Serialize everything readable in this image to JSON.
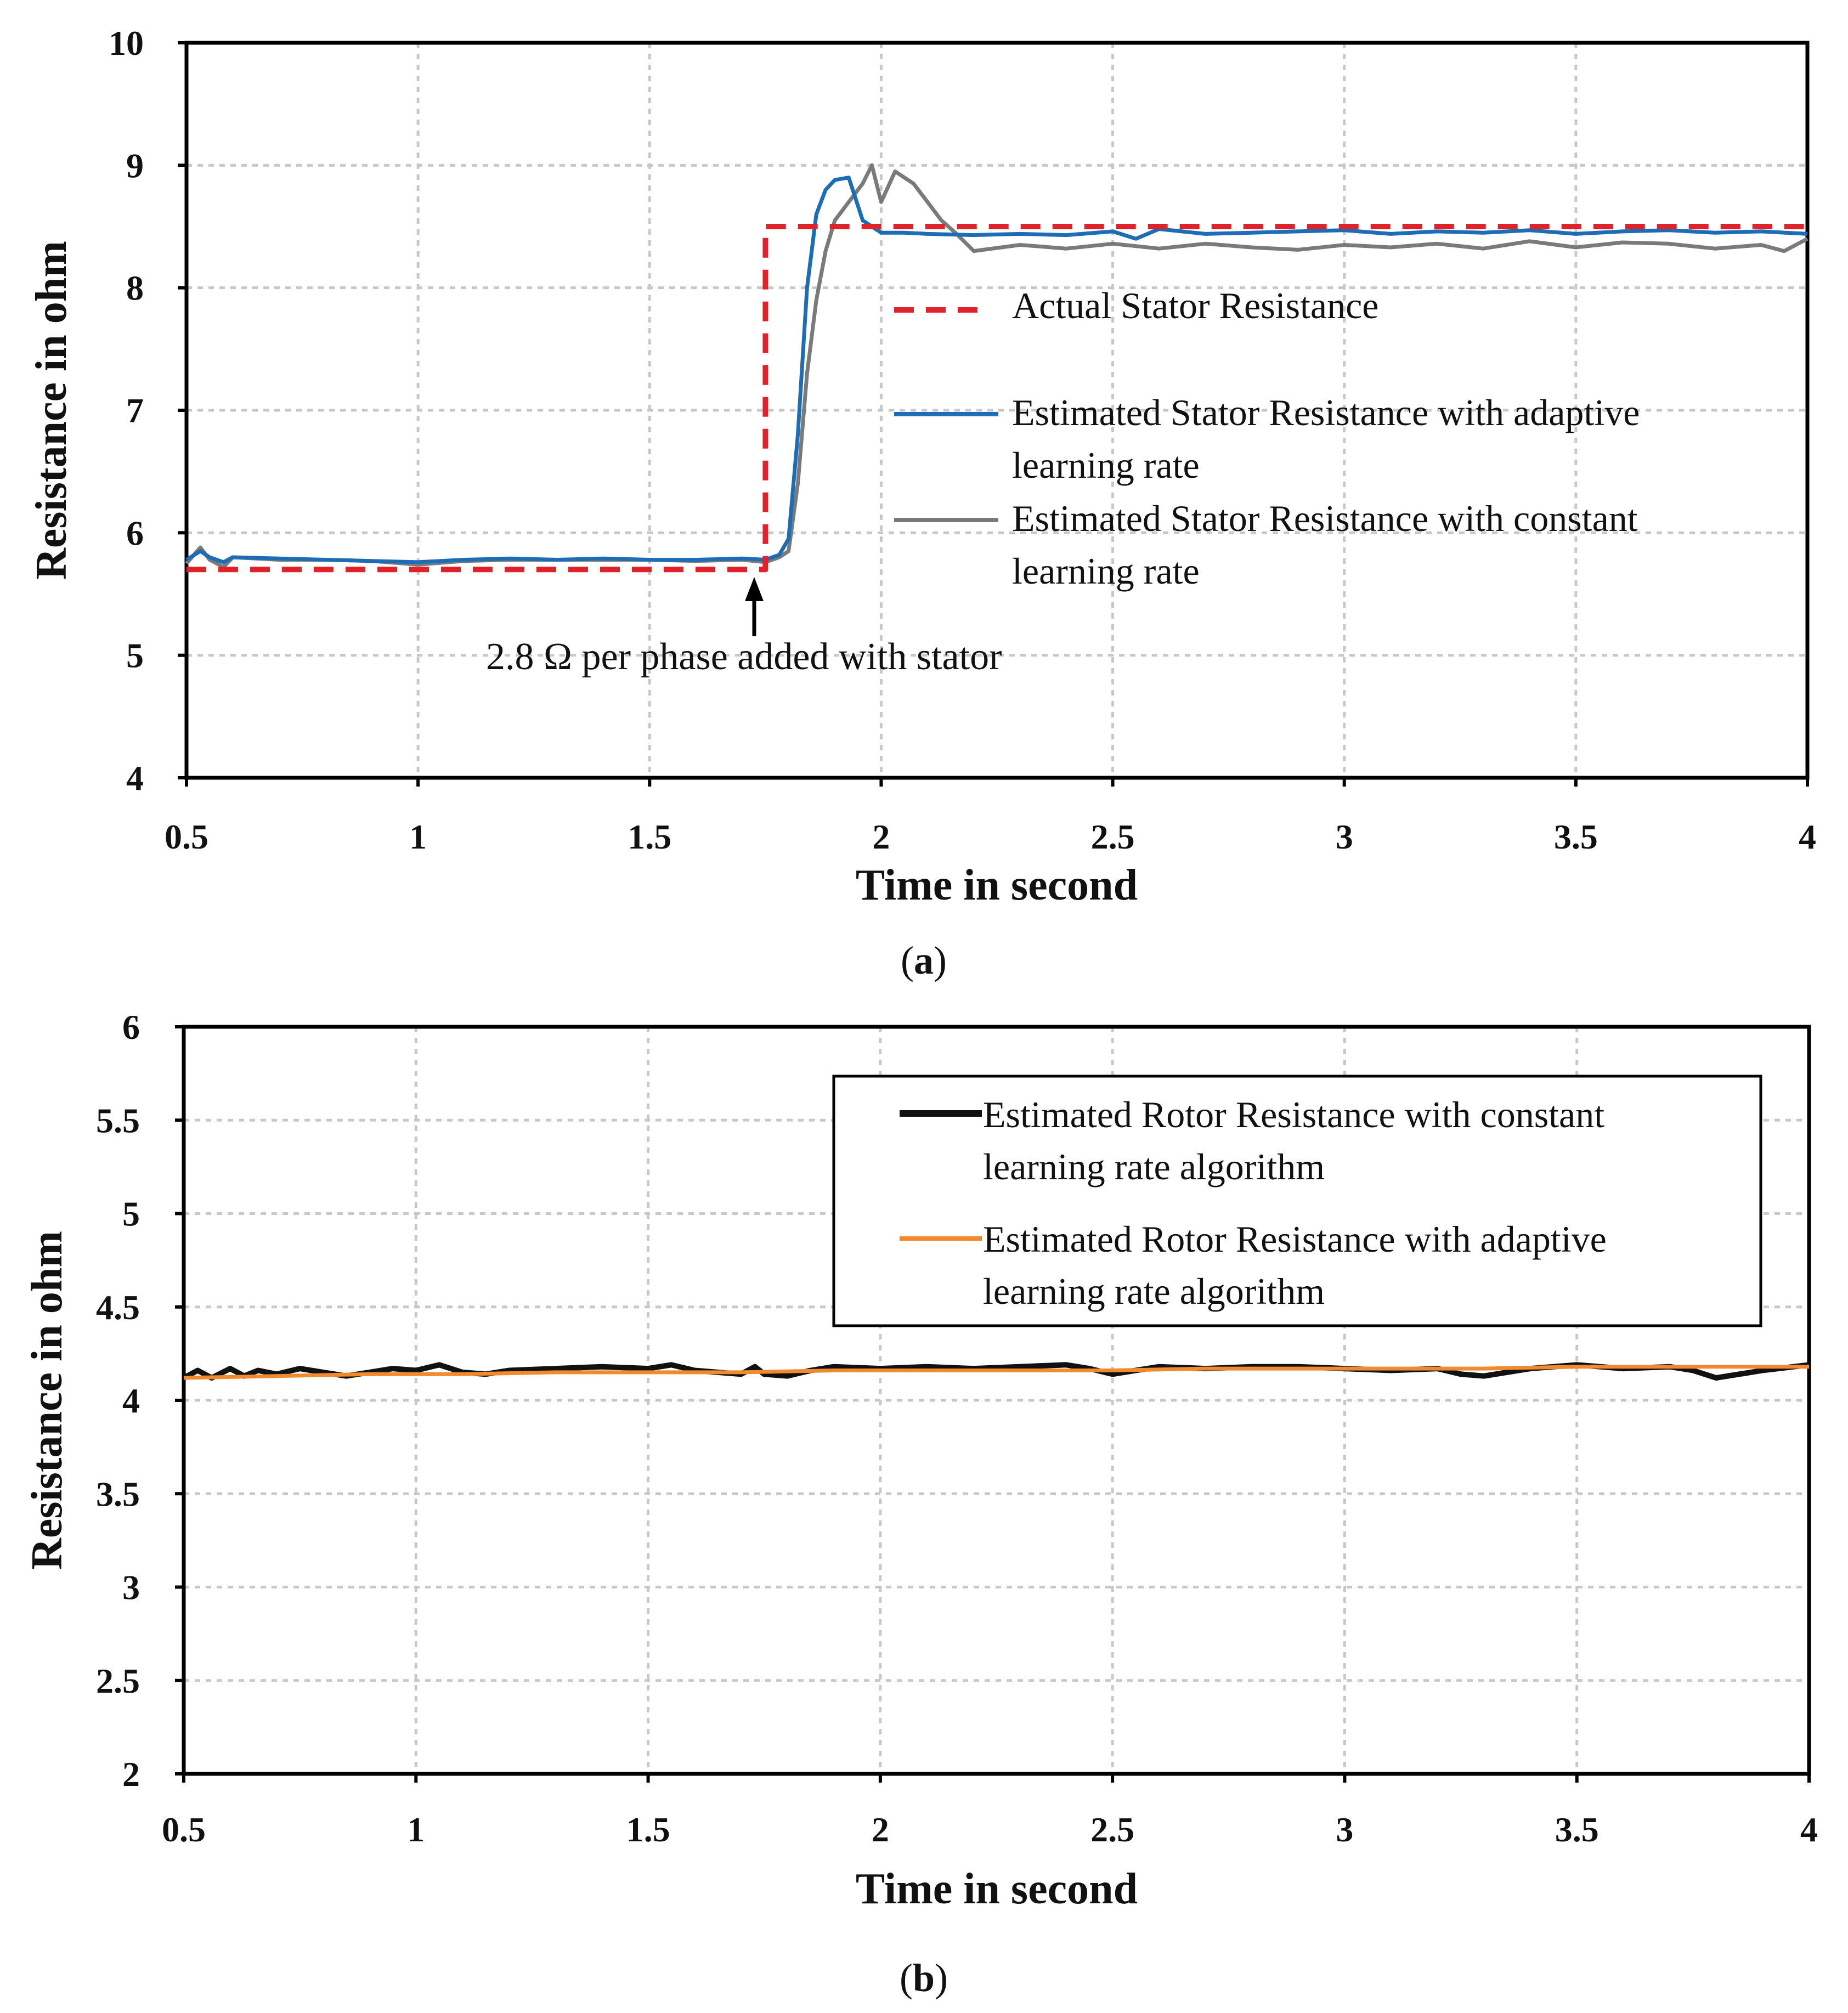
{
  "chart_data": [
    {
      "type": "line",
      "panel_label": "a",
      "xlabel": "Time in second",
      "ylabel": "Resistance in ohm",
      "xlim": [
        0.5,
        4
      ],
      "ylim": [
        4,
        10
      ],
      "xticks": [
        "0.5",
        "1",
        "1.5",
        "2",
        "2.5",
        "3",
        "3.5",
        "4"
      ],
      "yticks": [
        "4",
        "5",
        "6",
        "7",
        "8",
        "9",
        "10"
      ],
      "grid": true,
      "legend_position": "center-right",
      "annotation": {
        "text": "2.8 Ω per phase added with stator",
        "x": 1.75,
        "y": 5.7
      },
      "series": [
        {
          "name": "Actual Stator Resistance",
          "color": "#e0232b",
          "style": "dashed",
          "x": [
            0.5,
            1.75,
            1.75,
            4.0
          ],
          "y": [
            5.7,
            5.7,
            8.5,
            8.5
          ]
        },
        {
          "name": "Estimated Stator Resistance with adaptive learning rate",
          "color": "#1c6db5",
          "style": "solid",
          "x": [
            0.5,
            0.53,
            0.55,
            0.58,
            0.6,
            0.7,
            0.8,
            0.9,
            1.0,
            1.1,
            1.2,
            1.3,
            1.4,
            1.5,
            1.6,
            1.7,
            1.75,
            1.78,
            1.8,
            1.82,
            1.84,
            1.86,
            1.88,
            1.9,
            1.93,
            1.96,
            2.0,
            2.05,
            2.1,
            2.2,
            2.3,
            2.4,
            2.5,
            2.55,
            2.6,
            2.7,
            2.8,
            2.9,
            3.0,
            3.1,
            3.2,
            3.3,
            3.4,
            3.5,
            3.6,
            3.7,
            3.8,
            3.9,
            4.0
          ],
          "y": [
            5.78,
            5.85,
            5.8,
            5.76,
            5.8,
            5.79,
            5.78,
            5.77,
            5.76,
            5.78,
            5.79,
            5.78,
            5.79,
            5.78,
            5.78,
            5.79,
            5.78,
            5.82,
            5.95,
            6.8,
            8.0,
            8.6,
            8.8,
            8.88,
            8.9,
            8.55,
            8.45,
            8.45,
            8.44,
            8.43,
            8.44,
            8.43,
            8.46,
            8.4,
            8.48,
            8.44,
            8.45,
            8.46,
            8.47,
            8.44,
            8.46,
            8.45,
            8.47,
            8.44,
            8.46,
            8.47,
            8.45,
            8.46,
            8.44
          ]
        },
        {
          "name": "Estimated Stator Resistance with constant learning rate",
          "color": "#7a7a7a",
          "style": "solid",
          "x": [
            0.5,
            0.53,
            0.55,
            0.58,
            0.6,
            0.7,
            0.8,
            0.9,
            1.0,
            1.1,
            1.2,
            1.3,
            1.4,
            1.5,
            1.6,
            1.7,
            1.75,
            1.78,
            1.8,
            1.82,
            1.84,
            1.86,
            1.88,
            1.9,
            1.93,
            1.96,
            1.98,
            2.0,
            2.03,
            2.07,
            2.1,
            2.13,
            2.16,
            2.2,
            2.3,
            2.4,
            2.5,
            2.6,
            2.7,
            2.8,
            2.9,
            3.0,
            3.1,
            3.2,
            3.3,
            3.4,
            3.5,
            3.6,
            3.7,
            3.8,
            3.9,
            3.95,
            4.0
          ],
          "y": [
            5.75,
            5.88,
            5.78,
            5.72,
            5.8,
            5.78,
            5.78,
            5.77,
            5.74,
            5.77,
            5.78,
            5.78,
            5.78,
            5.78,
            5.77,
            5.78,
            5.76,
            5.8,
            5.85,
            6.4,
            7.3,
            7.9,
            8.3,
            8.55,
            8.7,
            8.85,
            9.0,
            8.7,
            8.95,
            8.85,
            8.7,
            8.55,
            8.45,
            8.3,
            8.35,
            8.32,
            8.36,
            8.32,
            8.36,
            8.33,
            8.31,
            8.35,
            8.33,
            8.36,
            8.32,
            8.38,
            8.33,
            8.37,
            8.36,
            8.32,
            8.35,
            8.3,
            8.4
          ]
        }
      ]
    },
    {
      "type": "line",
      "panel_label": "b",
      "xlabel": "Time in second",
      "ylabel": "Resistance in ohm",
      "xlim": [
        0.5,
        4
      ],
      "ylim": [
        2,
        6
      ],
      "xticks": [
        "0.5",
        "1",
        "1.5",
        "2",
        "2.5",
        "3",
        "3.5",
        "4"
      ],
      "yticks": [
        "2",
        "2.5",
        "3",
        "3.5",
        "4",
        "4.5",
        "5",
        "5.5",
        "6"
      ],
      "grid": true,
      "legend_position": "top-right",
      "series": [
        {
          "name": "Estimated Rotor  Resistance with constant learning rate algorithm",
          "color": "#111111",
          "style": "solid",
          "x": [
            0.5,
            0.53,
            0.56,
            0.6,
            0.63,
            0.66,
            0.7,
            0.75,
            0.8,
            0.85,
            0.9,
            0.95,
            1.0,
            1.05,
            1.1,
            1.15,
            1.2,
            1.3,
            1.4,
            1.5,
            1.55,
            1.6,
            1.7,
            1.73,
            1.75,
            1.8,
            1.85,
            1.9,
            2.0,
            2.1,
            2.2,
            2.3,
            2.4,
            2.45,
            2.5,
            2.6,
            2.7,
            2.8,
            2.9,
            3.0,
            3.1,
            3.2,
            3.25,
            3.3,
            3.4,
            3.5,
            3.6,
            3.7,
            3.75,
            3.8,
            3.9,
            4.0
          ],
          "y": [
            4.12,
            4.16,
            4.12,
            4.17,
            4.13,
            4.16,
            4.14,
            4.17,
            4.15,
            4.13,
            4.15,
            4.17,
            4.16,
            4.19,
            4.15,
            4.14,
            4.16,
            4.17,
            4.18,
            4.17,
            4.19,
            4.16,
            4.14,
            4.18,
            4.14,
            4.13,
            4.16,
            4.18,
            4.17,
            4.18,
            4.17,
            4.18,
            4.19,
            4.17,
            4.14,
            4.18,
            4.17,
            4.18,
            4.18,
            4.17,
            4.16,
            4.17,
            4.14,
            4.13,
            4.17,
            4.19,
            4.17,
            4.18,
            4.16,
            4.12,
            4.16,
            4.19
          ]
        },
        {
          "name": "Estimated Rotor  Resistance with adaptive learning rate algorithm",
          "color": "#f08a2c",
          "style": "solid",
          "x": [
            0.5,
            0.7,
            0.9,
            1.1,
            1.3,
            1.5,
            1.7,
            1.9,
            2.1,
            2.3,
            2.5,
            2.7,
            2.9,
            3.1,
            3.3,
            3.5,
            3.7,
            3.9,
            4.0
          ],
          "y": [
            4.12,
            4.13,
            4.14,
            4.14,
            4.15,
            4.15,
            4.15,
            4.16,
            4.16,
            4.16,
            4.16,
            4.17,
            4.17,
            4.17,
            4.17,
            4.18,
            4.18,
            4.18,
            4.18
          ]
        }
      ]
    }
  ]
}
